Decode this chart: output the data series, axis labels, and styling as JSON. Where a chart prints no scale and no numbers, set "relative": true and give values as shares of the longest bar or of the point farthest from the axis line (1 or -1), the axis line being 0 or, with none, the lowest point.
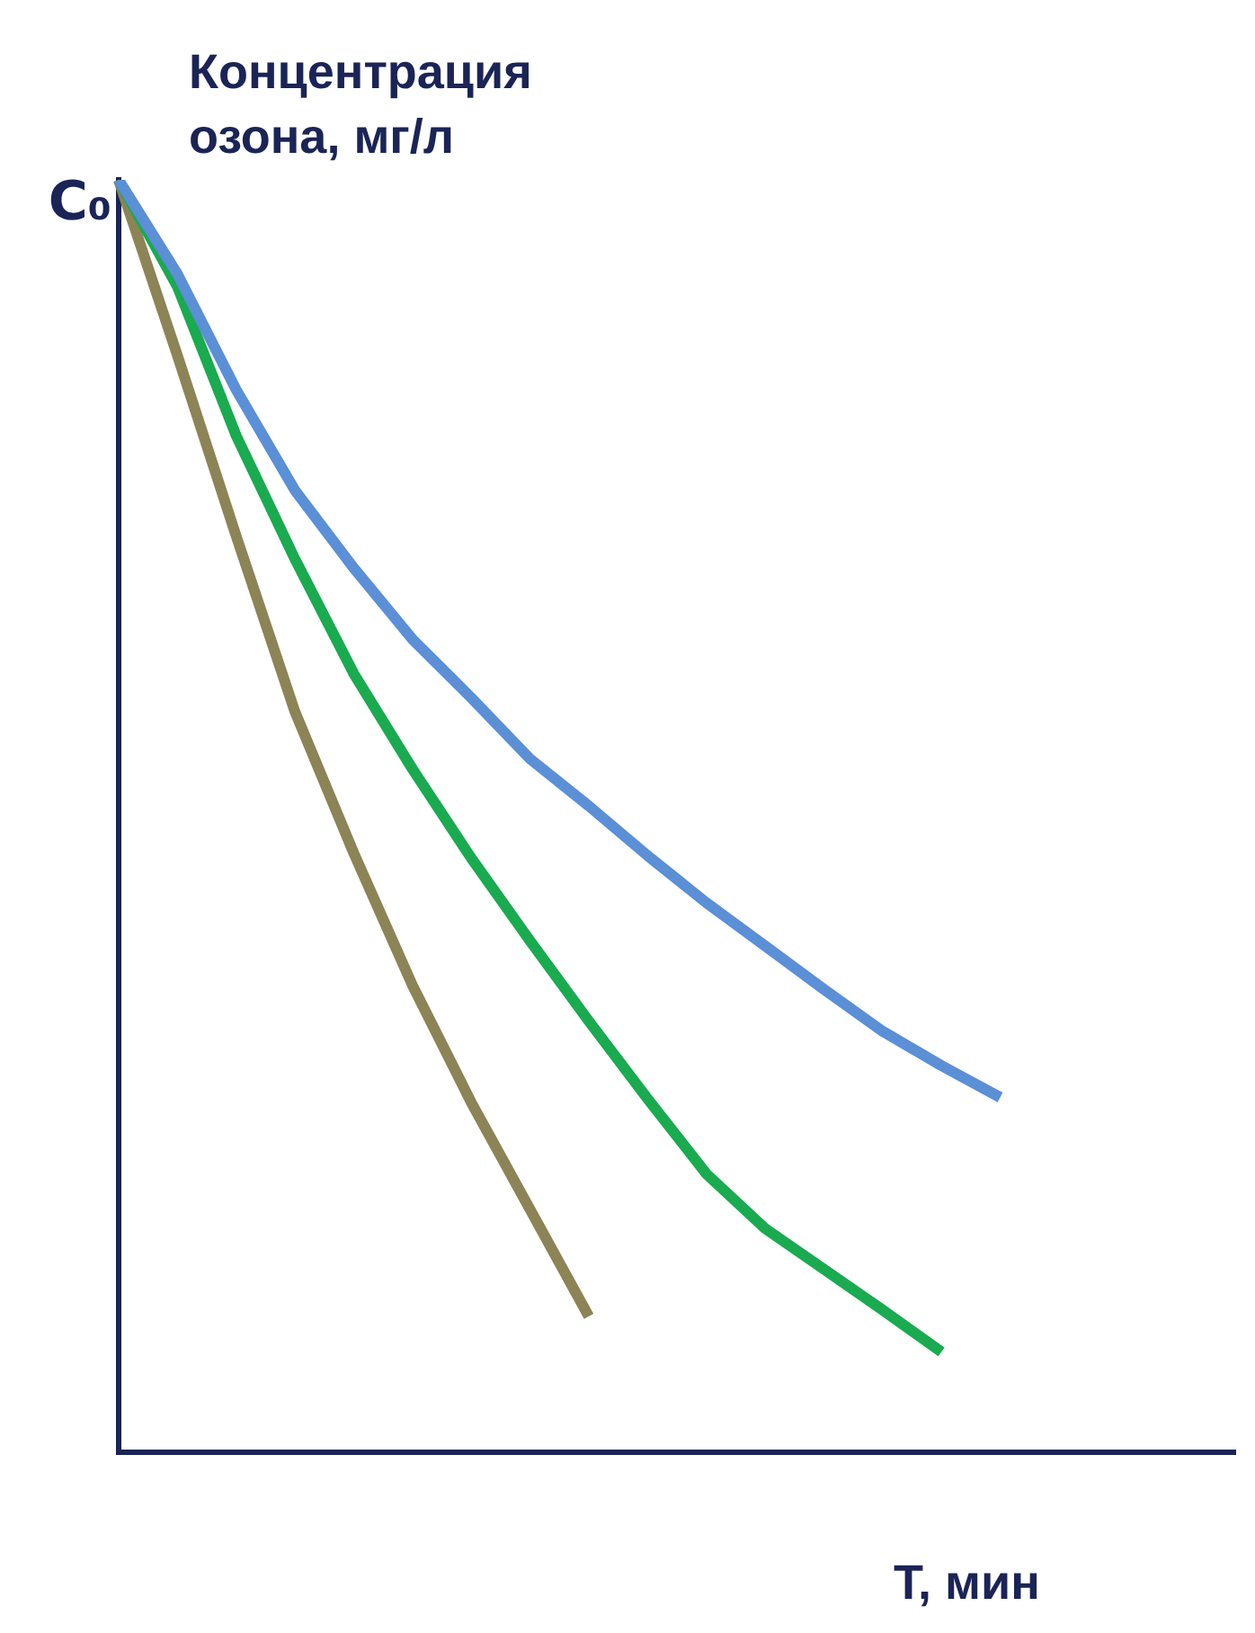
{
  "chart_data": {
    "type": "line",
    "relative": true,
    "ylabel": "Концентрация озона, мг/л",
    "xlabel": "T, мин",
    "grid": false,
    "legend": false,
    "marker": "none",
    "line_style": "solid",
    "annotations": [
      "C₀"
    ],
    "categories": [
      null,
      null,
      null,
      null,
      null,
      null,
      null,
      null,
      null,
      null,
      null,
      null,
      null,
      null,
      null,
      null,
      null,
      null,
      null,
      null
    ],
    "series": [
      {
        "color": "#5b8fd6",
        "values": [
          1.0,
          0.926,
          0.835,
          0.756,
          0.695,
          0.639,
          0.593,
          0.545,
          0.508,
          0.469,
          0.432,
          0.398,
          0.364,
          0.331,
          0.304,
          0.279,
          null,
          null,
          null,
          null
        ]
      },
      {
        "color": "#1aaa50",
        "values": [
          1.0,
          0.916,
          0.799,
          0.702,
          0.612,
          0.537,
          0.467,
          0.402,
          0.339,
          0.278,
          0.219,
          0.176,
          0.144,
          0.112,
          0.079,
          null,
          null,
          null,
          null,
          null
        ]
      },
      {
        "color": "#8c8456",
        "values": [
          1.0,
          0.862,
          0.72,
          0.582,
          0.471,
          0.367,
          0.275,
          0.191,
          0.107,
          null,
          null,
          null,
          null,
          null,
          null,
          null,
          null,
          null,
          null,
          null
        ]
      }
    ]
  }
}
